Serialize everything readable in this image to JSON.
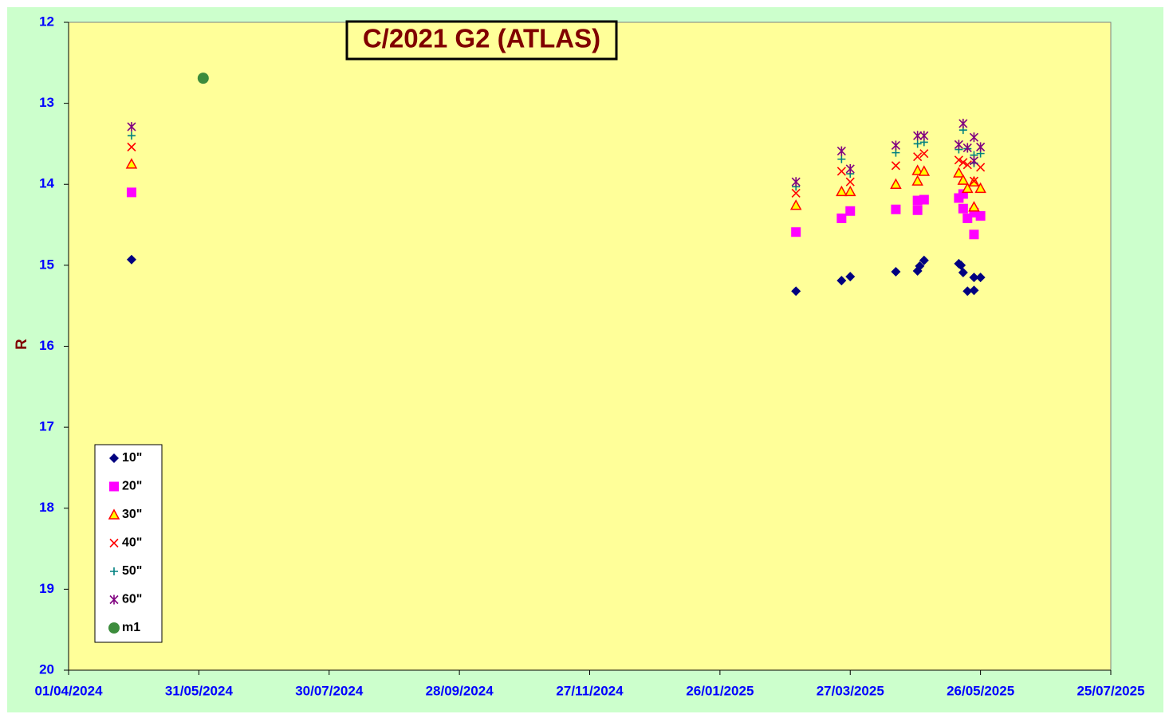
{
  "chart_data": {
    "type": "scatter",
    "title": "C/2021 G2 (ATLAS)",
    "y_label": "R",
    "xlim": [
      "01/04/2024",
      "25/07/2025"
    ],
    "xticks": [
      "01/04/2024",
      "31/05/2024",
      "30/07/2024",
      "28/09/2024",
      "27/11/2024",
      "26/01/2025",
      "27/03/2025",
      "26/05/2025",
      "25/07/2025"
    ],
    "ylim": [
      12,
      20
    ],
    "yticks": [
      12,
      13,
      14,
      15,
      16,
      17,
      18,
      19,
      20
    ],
    "y_inverted": true,
    "legend": "lower left",
    "series": [
      {
        "name": "10\"",
        "color": "#000080",
        "marker": "diamond",
        "x": [
          "30/04/2024",
          "02/03/2025",
          "23/03/2025",
          "27/03/2025",
          "17/04/2025",
          "27/04/2025",
          "28/04/2025",
          "30/04/2025",
          "16/05/2025",
          "17/05/2025",
          "18/05/2025",
          "20/05/2025",
          "23/05/2025",
          "23/05/2025",
          "26/05/2025"
        ],
        "values": [
          14.93,
          15.32,
          15.19,
          15.14,
          15.08,
          15.07,
          15.01,
          14.94,
          14.98,
          15.0,
          15.09,
          15.32,
          15.15,
          15.31,
          15.15
        ]
      },
      {
        "name": "20\"",
        "color": "#ff00ff",
        "marker": "square",
        "x": [
          "30/04/2024",
          "02/03/2025",
          "23/03/2025",
          "27/03/2025",
          "17/04/2025",
          "27/04/2025",
          "27/04/2025",
          "30/04/2025",
          "16/05/2025",
          "18/05/2025",
          "18/05/2025",
          "20/05/2025",
          "23/05/2025",
          "23/05/2025",
          "26/05/2025"
        ],
        "values": [
          14.1,
          14.59,
          14.42,
          14.33,
          14.31,
          14.32,
          14.2,
          14.19,
          14.17,
          14.3,
          14.12,
          14.42,
          14.62,
          14.35,
          14.39
        ]
      },
      {
        "name": "30\"",
        "color": "#ffff00",
        "edge": "#ff0000",
        "marker": "triangle",
        "x": [
          "30/04/2024",
          "02/03/2025",
          "23/03/2025",
          "27/03/2025",
          "17/04/2025",
          "27/04/2025",
          "27/04/2025",
          "30/04/2025",
          "16/05/2025",
          "18/05/2025",
          "20/05/2025",
          "23/05/2025",
          "23/05/2025",
          "26/05/2025"
        ],
        "values": [
          13.75,
          14.26,
          14.09,
          14.09,
          14.0,
          13.96,
          13.83,
          13.84,
          13.86,
          13.95,
          14.05,
          14.28,
          13.97,
          14.05
        ]
      },
      {
        "name": "40\"",
        "color": "#ff0000",
        "marker": "x",
        "x": [
          "30/04/2024",
          "02/03/2025",
          "23/03/2025",
          "27/03/2025",
          "17/04/2025",
          "27/04/2025",
          "30/04/2025",
          "16/05/2025",
          "18/05/2025",
          "20/05/2025",
          "23/05/2025",
          "26/05/2025"
        ],
        "values": [
          13.54,
          14.11,
          13.84,
          13.97,
          13.77,
          13.66,
          13.62,
          13.7,
          13.73,
          13.76,
          13.96,
          13.79
        ]
      },
      {
        "name": "50\"",
        "color": "#008080",
        "marker": "plus",
        "x": [
          "30/04/2024",
          "02/03/2025",
          "23/03/2025",
          "27/03/2025",
          "17/04/2025",
          "27/04/2025",
          "30/04/2025",
          "16/05/2025",
          "18/05/2025",
          "20/05/2025",
          "23/05/2025",
          "23/05/2025",
          "26/05/2025"
        ],
        "values": [
          13.4,
          14.03,
          13.69,
          13.87,
          13.61,
          13.5,
          13.48,
          13.57,
          13.33,
          13.56,
          13.74,
          13.64,
          13.62
        ]
      },
      {
        "name": "60\"",
        "color": "#800080",
        "marker": "asterisk",
        "x": [
          "30/04/2024",
          "02/03/2025",
          "23/03/2025",
          "27/03/2025",
          "17/04/2025",
          "27/04/2025",
          "30/04/2025",
          "16/05/2025",
          "18/05/2025",
          "20/05/2025",
          "23/05/2025",
          "23/05/2025",
          "26/05/2025"
        ],
        "values": [
          13.29,
          13.97,
          13.59,
          13.81,
          13.52,
          13.4,
          13.4,
          13.51,
          13.25,
          13.55,
          13.42,
          13.71,
          13.54
        ]
      },
      {
        "name": "m1",
        "color": "#3c8c3c",
        "marker": "circle",
        "x": [
          "02/06/2024"
        ],
        "values": [
          12.69
        ]
      }
    ]
  }
}
